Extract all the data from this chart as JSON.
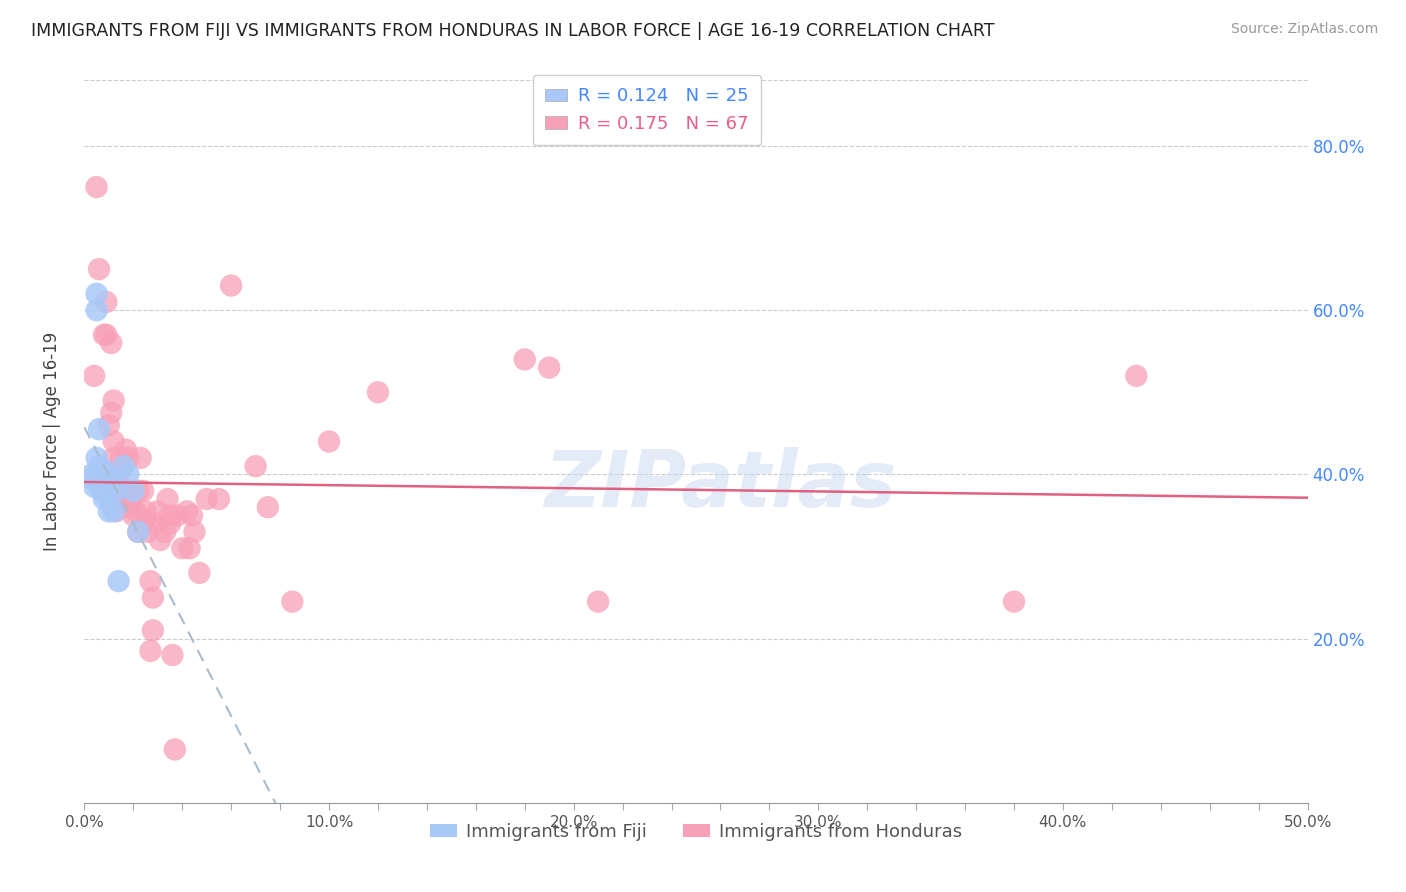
{
  "title": "IMMIGRANTS FROM FIJI VS IMMIGRANTS FROM HONDURAS IN LABOR FORCE | AGE 16-19 CORRELATION CHART",
  "source": "Source: ZipAtlas.com",
  "ylabel": "In Labor Force | Age 16-19",
  "x_tick_labels": [
    "0.0%",
    "",
    "",
    "",
    "",
    "10.0%",
    "",
    "",
    "",
    "",
    "20.0%",
    "",
    "",
    "",
    "",
    "30.0%",
    "",
    "",
    "",
    "",
    "40.0%",
    "",
    "",
    "",
    "",
    "50.0%"
  ],
  "x_tick_values": [
    0.0,
    0.02,
    0.04,
    0.06,
    0.08,
    0.1,
    0.12,
    0.14,
    0.16,
    0.18,
    0.2,
    0.22,
    0.24,
    0.26,
    0.28,
    0.3,
    0.32,
    0.34,
    0.36,
    0.38,
    0.4,
    0.42,
    0.44,
    0.46,
    0.48,
    0.5
  ],
  "y_tick_labels": [
    "20.0%",
    "40.0%",
    "60.0%",
    "80.0%"
  ],
  "y_tick_values": [
    0.2,
    0.4,
    0.6,
    0.8
  ],
  "xlim": [
    0.0,
    0.5
  ],
  "ylim": [
    0.0,
    0.88
  ],
  "fiji_color": "#a8c8f8",
  "honduras_color": "#f8a0b8",
  "fiji_trend_color": "#6699dd",
  "honduras_trend_color": "#e06080",
  "fiji_R": 0.124,
  "fiji_N": 25,
  "honduras_R": 0.175,
  "honduras_N": 67,
  "legend_fiji_label": "Immigrants from Fiji",
  "legend_honduras_label": "Immigrants from Honduras",
  "watermark": "ZIPatlas",
  "fiji_x": [
    0.003,
    0.003,
    0.004,
    0.005,
    0.005,
    0.005,
    0.006,
    0.006,
    0.007,
    0.007,
    0.008,
    0.008,
    0.008,
    0.009,
    0.009,
    0.01,
    0.01,
    0.011,
    0.012,
    0.013,
    0.014,
    0.016,
    0.018,
    0.02,
    0.022
  ],
  "fiji_y": [
    0.395,
    0.4,
    0.385,
    0.62,
    0.6,
    0.42,
    0.41,
    0.455,
    0.39,
    0.38,
    0.405,
    0.38,
    0.37,
    0.395,
    0.375,
    0.355,
    0.38,
    0.395,
    0.355,
    0.38,
    0.27,
    0.41,
    0.4,
    0.38,
    0.33
  ],
  "honduras_x": [
    0.004,
    0.005,
    0.006,
    0.007,
    0.008,
    0.009,
    0.009,
    0.01,
    0.011,
    0.011,
    0.012,
    0.012,
    0.012,
    0.013,
    0.014,
    0.014,
    0.015,
    0.015,
    0.016,
    0.016,
    0.017,
    0.018,
    0.018,
    0.019,
    0.019,
    0.02,
    0.021,
    0.022,
    0.022,
    0.023,
    0.024,
    0.025,
    0.025,
    0.026,
    0.027,
    0.027,
    0.028,
    0.028,
    0.029,
    0.03,
    0.031,
    0.033,
    0.034,
    0.035,
    0.035,
    0.036,
    0.037,
    0.038,
    0.04,
    0.042,
    0.043,
    0.044,
    0.045,
    0.047,
    0.05,
    0.055,
    0.06,
    0.07,
    0.075,
    0.085,
    0.1,
    0.12,
    0.18,
    0.19,
    0.21,
    0.38,
    0.43
  ],
  "honduras_y": [
    0.52,
    0.75,
    0.65,
    0.39,
    0.57,
    0.61,
    0.57,
    0.46,
    0.475,
    0.56,
    0.44,
    0.49,
    0.42,
    0.355,
    0.4,
    0.38,
    0.405,
    0.42,
    0.365,
    0.365,
    0.43,
    0.42,
    0.38,
    0.37,
    0.36,
    0.35,
    0.355,
    0.33,
    0.38,
    0.42,
    0.38,
    0.355,
    0.345,
    0.33,
    0.27,
    0.185,
    0.25,
    0.21,
    0.34,
    0.355,
    0.32,
    0.33,
    0.37,
    0.35,
    0.34,
    0.18,
    0.065,
    0.35,
    0.31,
    0.355,
    0.31,
    0.35,
    0.33,
    0.28,
    0.37,
    0.37,
    0.63,
    0.41,
    0.36,
    0.245,
    0.44,
    0.5,
    0.54,
    0.53,
    0.245,
    0.245,
    0.52
  ]
}
